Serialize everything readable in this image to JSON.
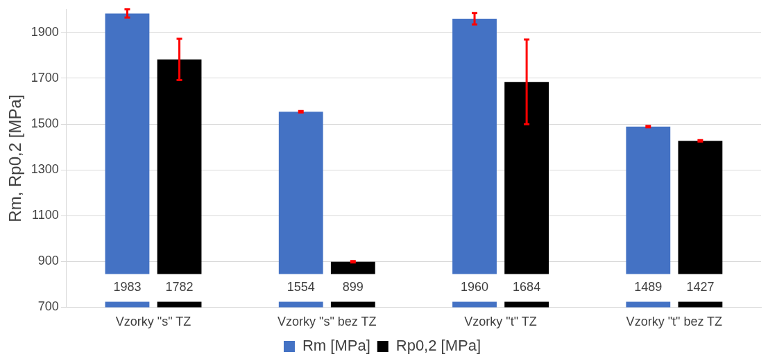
{
  "chart_data": {
    "type": "bar",
    "ylabel": "Rm, Rp0,2 [MPa]",
    "categories": [
      "Vzorky \"s\" TZ",
      "Vzorky \"s\" bez TZ",
      "Vzorky \"t\" TZ",
      "Vzorky \"t\" bez TZ"
    ],
    "series": [
      {
        "name": "Rm [MPa]",
        "color": "#4472c4",
        "values": [
          1983,
          1554,
          1960,
          1489
        ],
        "errors": [
          18,
          3,
          25,
          3
        ]
      },
      {
        "name": "Rp0,2 [MPa]",
        "color": "#000000",
        "values": [
          1782,
          899,
          1684,
          1427
        ],
        "errors": [
          90,
          3,
          185,
          3
        ]
      }
    ],
    "ylim": [
      700,
      2000
    ],
    "yticks": [
      700,
      900,
      1100,
      1300,
      1500,
      1700,
      1900
    ],
    "grid": "y",
    "legend": "bottom",
    "data_labels": true
  }
}
